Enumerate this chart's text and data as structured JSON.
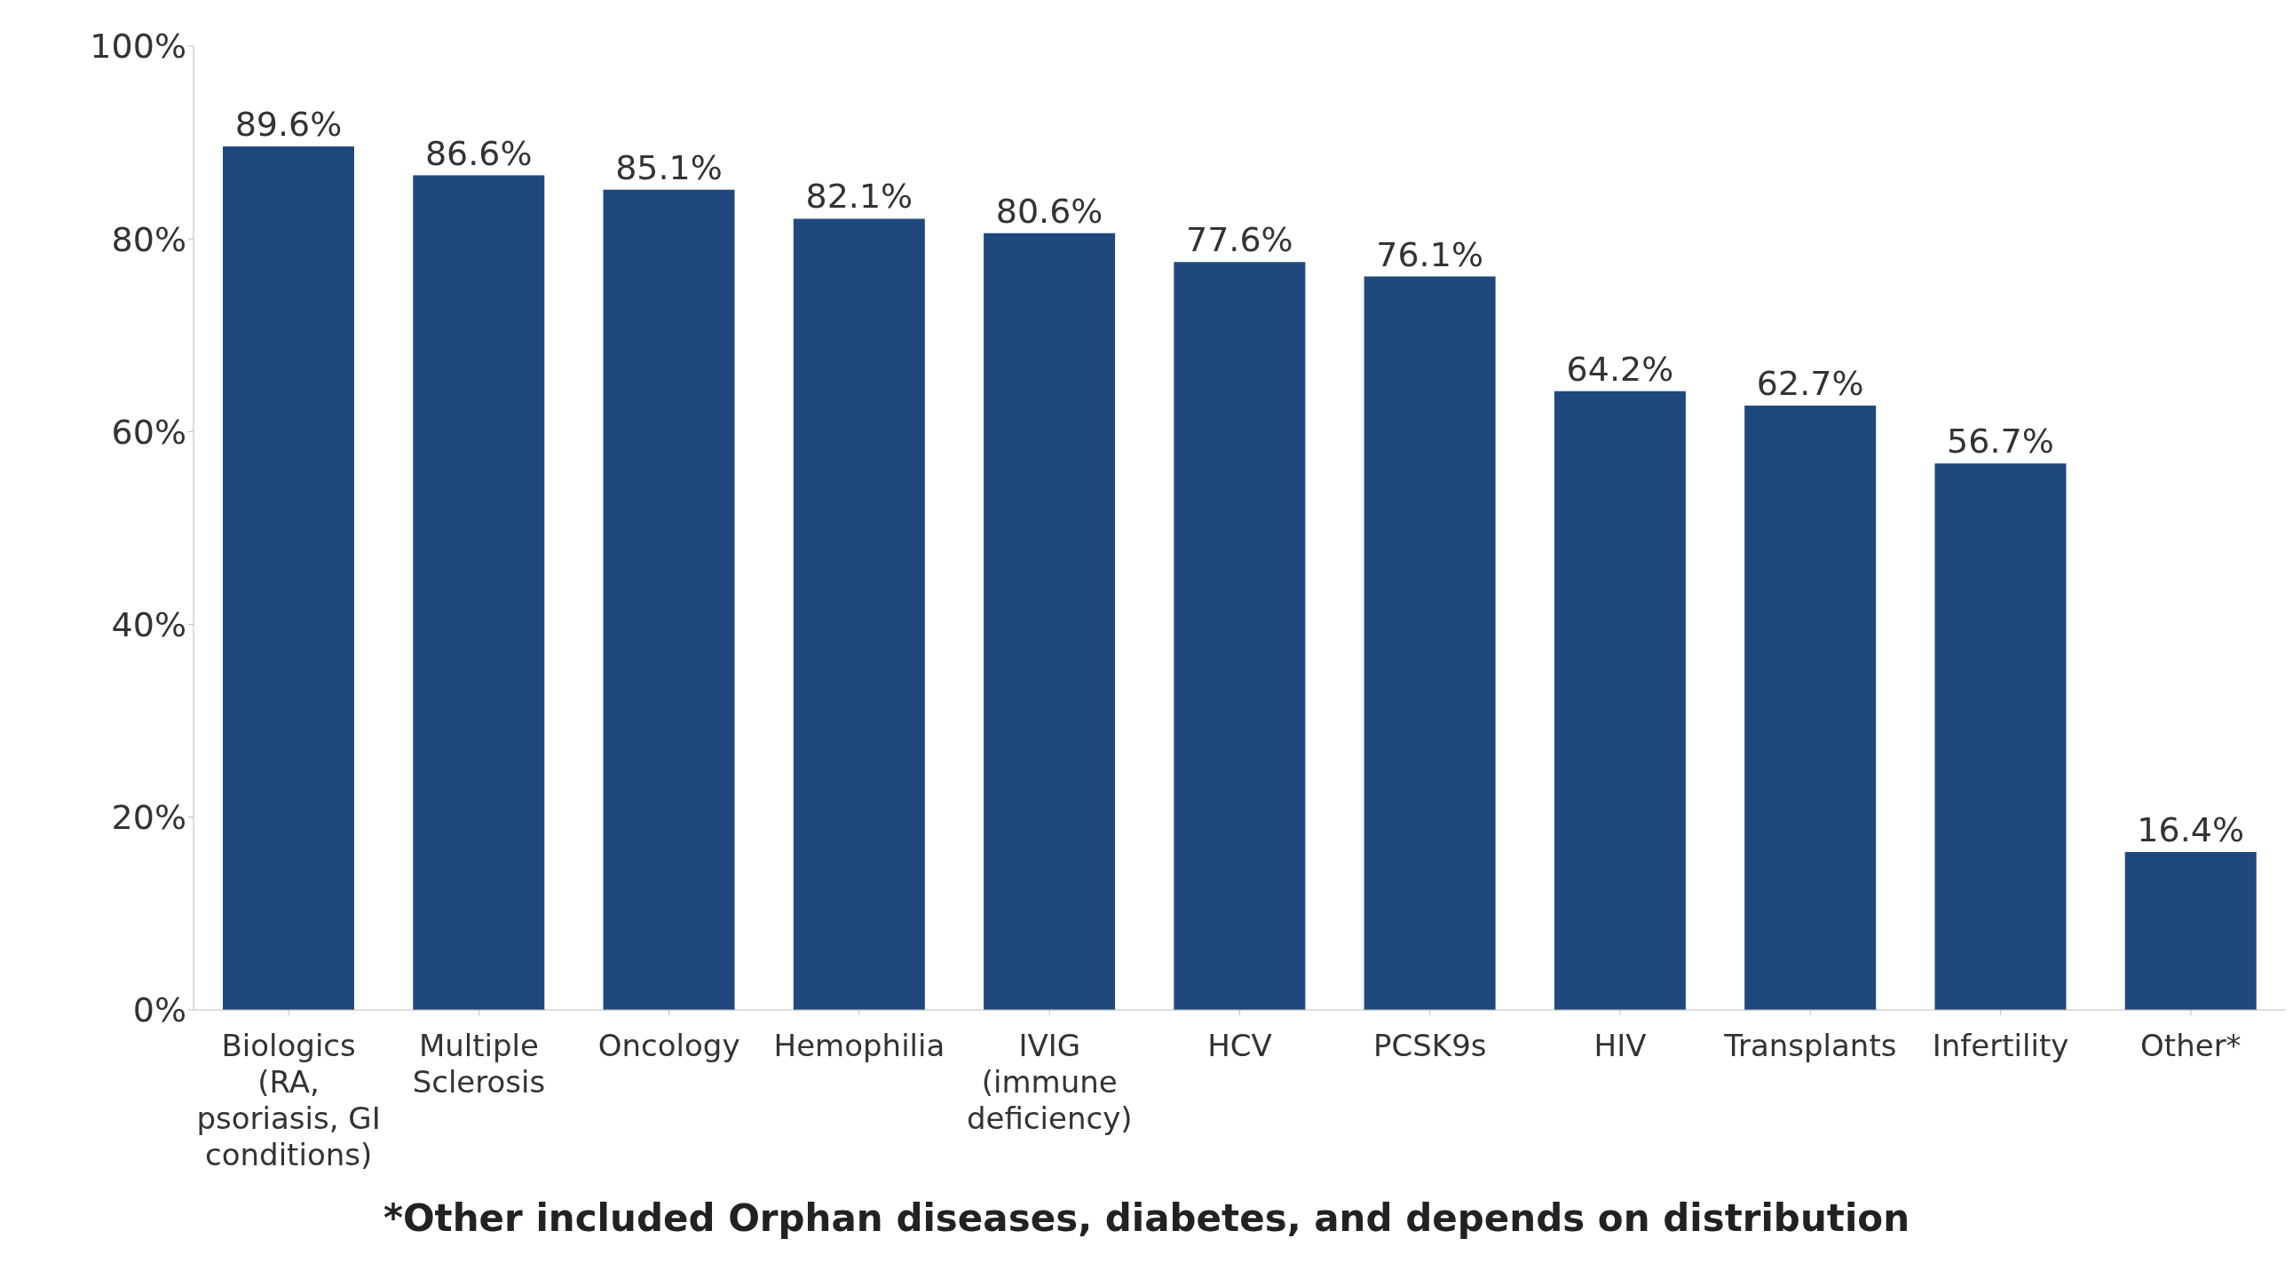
{
  "chart_data": {
    "type": "bar",
    "categories": [
      "Biologics (RA, psoriasis, GI conditions)",
      "Multiple Sclerosis",
      "Oncology",
      "Hemophilia",
      "IVIG (immune deficiency)",
      "HCV",
      "PCSK9s",
      "HIV",
      "Transplants",
      "Infertility",
      "Other*"
    ],
    "values": [
      89.6,
      86.6,
      85.1,
      82.1,
      80.6,
      77.6,
      76.1,
      64.2,
      62.7,
      56.7,
      16.4
    ],
    "value_labels": [
      "89.6%",
      "86.6%",
      "85.1%",
      "82.1%",
      "80.6%",
      "77.6%",
      "76.1%",
      "64.2%",
      "62.7%",
      "56.7%",
      "16.4%"
    ],
    "color": "#1f497d",
    "ylim": [
      0,
      100
    ],
    "yticks": [
      {
        "value": 0,
        "label": "0%"
      },
      {
        "value": 20,
        "label": "20%"
      },
      {
        "value": 40,
        "label": "40%"
      },
      {
        "value": 60,
        "label": "60%"
      },
      {
        "value": 80,
        "label": "80%"
      },
      {
        "value": 100,
        "label": "100%"
      }
    ],
    "grid": false,
    "legend": false,
    "annotations": [
      "*Other included Orphan diseases, diabetes, and depends on distribution"
    ]
  }
}
